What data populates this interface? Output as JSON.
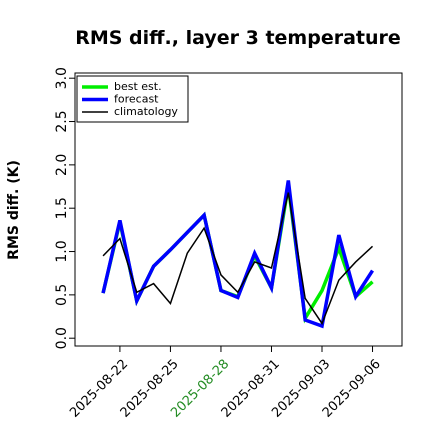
{
  "chart_data": {
    "type": "line",
    "title": "RMS diff., layer 3 temperature",
    "y_label": "RMS diff. (K)",
    "x": [
      "2025-08-21",
      "2025-08-22",
      "2025-08-23",
      "2025-08-24",
      "2025-08-25",
      "2025-08-26",
      "2025-08-27",
      "2025-08-28",
      "2025-08-29",
      "2025-08-30",
      "2025-08-31",
      "2025-09-01",
      "2025-09-02",
      "2025-09-03",
      "2025-09-04",
      "2025-09-05",
      "2025-09-06"
    ],
    "series": [
      {
        "name": "best est.",
        "color": "#00ee00",
        "width": 3.5,
        "values": [
          0.52,
          1.34,
          0.43,
          0.83,
          1.02,
          1.22,
          1.42,
          0.55,
          0.48,
          0.95,
          0.58,
          1.76,
          0.23,
          0.55,
          1.04,
          0.48,
          0.65
        ]
      },
      {
        "name": "forecast",
        "color": "#0000ff",
        "width": 3.5,
        "values": [
          0.52,
          1.36,
          0.43,
          0.83,
          1.02,
          1.22,
          1.42,
          0.55,
          0.47,
          0.98,
          0.58,
          1.82,
          0.21,
          0.14,
          1.19,
          0.48,
          0.78
        ]
      },
      {
        "name": "climatology",
        "color": "#000000",
        "width": 1.5,
        "values": [
          0.95,
          1.15,
          0.53,
          0.63,
          0.4,
          0.98,
          1.27,
          0.73,
          0.53,
          0.88,
          0.81,
          1.68,
          0.46,
          0.17,
          0.67,
          0.88,
          1.06
        ]
      }
    ],
    "xlim": [
      "2025-08-19T08:00",
      "2025-09-07T18:00"
    ],
    "xticks": [
      "2025-08-22",
      "2025-08-25",
      "2025-08-28",
      "2025-08-31",
      "2025-09-03",
      "2025-09-06"
    ],
    "xtick_colors": [
      "#000000",
      "#000000",
      "#228b22",
      "#000000",
      "#000000",
      "#000000"
    ],
    "ylim": [
      -0.09,
      3.06
    ],
    "yticks": [
      {
        "value": 0,
        "label": "0.0"
      },
      {
        "value": 0.5,
        "label": "0.5"
      },
      {
        "value": 1,
        "label": "1.0"
      },
      {
        "value": 1.5,
        "label": "1.5"
      },
      {
        "value": 2,
        "label": "2.0"
      },
      {
        "value": 2.5,
        "label": "2.5"
      },
      {
        "value": 3,
        "label": "3.0"
      }
    ],
    "legend": "top-left"
  }
}
